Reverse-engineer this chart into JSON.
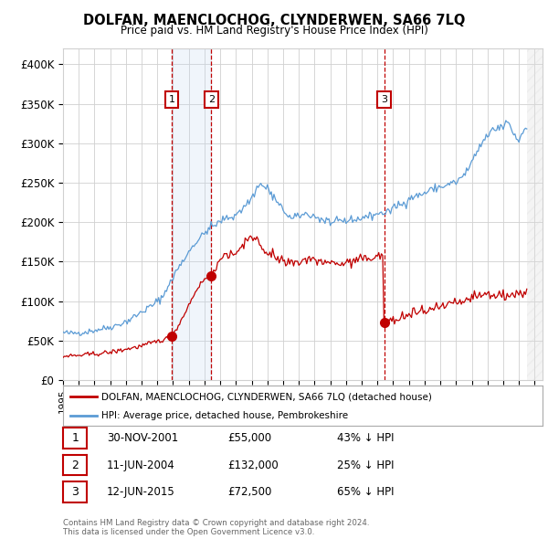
{
  "title": "DOLFAN, MAENCLOCHOG, CLYNDERWEN, SA66 7LQ",
  "subtitle": "Price paid vs. HM Land Registry's House Price Index (HPI)",
  "ylim": [
    0,
    420000
  ],
  "yticks": [
    0,
    50000,
    100000,
    150000,
    200000,
    250000,
    300000,
    350000,
    400000
  ],
  "ytick_labels": [
    "£0",
    "£50K",
    "£100K",
    "£150K",
    "£200K",
    "£250K",
    "£300K",
    "£350K",
    "£400K"
  ],
  "hpi_color": "#5b9bd5",
  "hpi_fill_color": "#c5d9f1",
  "price_color": "#c00000",
  "vline_color": "#c00000",
  "marker_color": "#c00000",
  "background_color": "#ffffff",
  "grid_color": "#d0d0d0",
  "legend_box_color": "#c00000",
  "sale1_x": 2001.917,
  "sale1_y": 55000,
  "sale2_x": 2004.44,
  "sale2_y": 132000,
  "sale3_x": 2015.44,
  "sale3_y": 72500,
  "table_rows": [
    {
      "num": "1",
      "date": "30-NOV-2001",
      "price": "£55,000",
      "pct": "43% ↓ HPI"
    },
    {
      "num": "2",
      "date": "11-JUN-2004",
      "price": "£132,000",
      "pct": "25% ↓ HPI"
    },
    {
      "num": "3",
      "date": "12-JUN-2015",
      "price": "£72,500",
      "pct": "65% ↓ HPI"
    }
  ],
  "legend1": "DOLFAN, MAENCLOCHOG, CLYNDERWEN, SA66 7LQ (detached house)",
  "legend2": "HPI: Average price, detached house, Pembrokeshire",
  "footer": "Contains HM Land Registry data © Crown copyright and database right 2024.\nThis data is licensed under the Open Government Licence v3.0.",
  "xmin": 1995.0,
  "xmax": 2025.5
}
